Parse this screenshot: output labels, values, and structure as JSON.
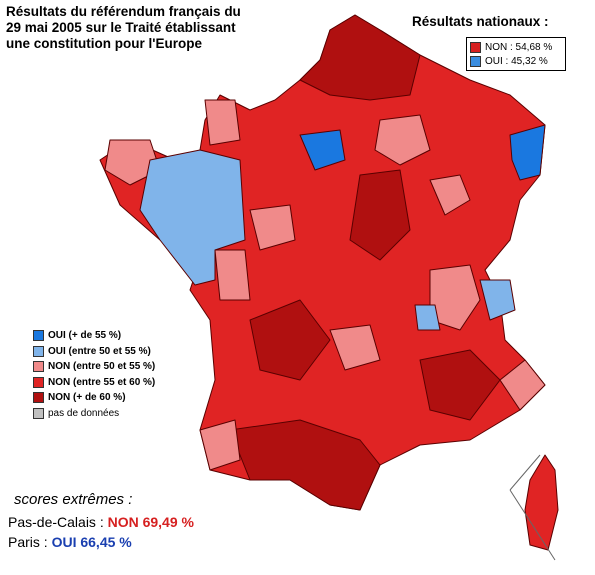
{
  "title": "Résultats du référendum français du 29 mai 2005 sur le Traité établissant une constitution pour l'Europe",
  "national_results": {
    "heading": "Résultats nationaux :",
    "items": [
      {
        "label": "NON : 54,68 %",
        "color": "#d62020"
      },
      {
        "label": "OUI : 45,32 %",
        "color": "#3a8de0"
      }
    ]
  },
  "legend": [
    {
      "label": "OUI (+ de 55 %)",
      "color": "#1a78e0"
    },
    {
      "label": "OUI (entre 50 et 55 %)",
      "color": "#80b4ea"
    },
    {
      "label": "NON (entre 50 et 55 %)",
      "color": "#f08a8a"
    },
    {
      "label": "NON (entre 55 et 60 %)",
      "color": "#e02424"
    },
    {
      "label": "NON (+ de 60 %)",
      "color": "#b01010"
    },
    {
      "label": "pas de données",
      "color": "#c0c0c0"
    }
  ],
  "extremes": {
    "heading": "scores extrêmes :",
    "rows": [
      {
        "place": "Pas-de-Calais :",
        "result": "NON 69,49 %",
        "color": "#d62020"
      },
      {
        "place": "Paris :",
        "result": "OUI 66,45 %",
        "color": "#1a3fb0"
      }
    ]
  }
}
